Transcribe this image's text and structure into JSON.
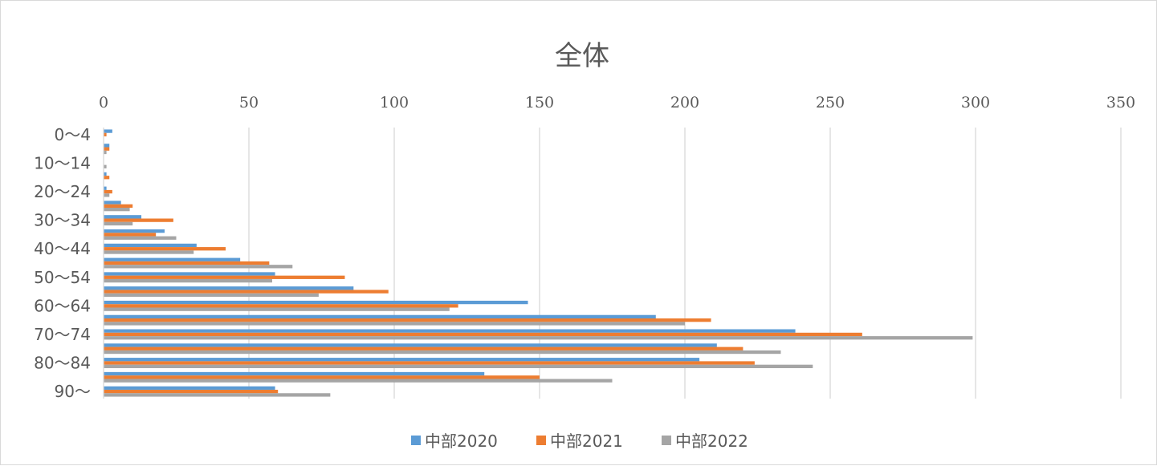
{
  "chart_data": {
    "type": "bar",
    "orientation": "horizontal",
    "title": "全体",
    "xlabel": "",
    "ylabel": "",
    "xlim": [
      0,
      350
    ],
    "x_ticks": [
      "0",
      "50",
      "100",
      "150",
      "200",
      "250",
      "300",
      "350"
    ],
    "x_axis_position": "top",
    "grid": true,
    "legend_position": "bottom",
    "categories": [
      "0～4",
      "5～9",
      "10～14",
      "15～19",
      "20～24",
      "25～29",
      "30～34",
      "35～39",
      "40～44",
      "45～49",
      "50～54",
      "55～59",
      "60～64",
      "65～69",
      "70～74",
      "75～79",
      "80～84",
      "85～89",
      "90～"
    ],
    "visible_category_labels": [
      "0～4",
      "10～14",
      "20～24",
      "30～34",
      "40～44",
      "50～54",
      "60～64",
      "70～74",
      "80～84",
      "90～"
    ],
    "series": [
      {
        "name": "中部2020",
        "color": "#5b9bd5",
        "values": [
          3,
          2,
          0,
          1,
          1,
          6,
          13,
          21,
          32,
          47,
          59,
          86,
          146,
          190,
          238,
          211,
          205,
          131,
          59
        ]
      },
      {
        "name": "中部2021",
        "color": "#ed7d31",
        "values": [
          1,
          2,
          0,
          2,
          3,
          10,
          24,
          18,
          42,
          57,
          83,
          98,
          122,
          209,
          261,
          220,
          224,
          150,
          60
        ]
      },
      {
        "name": "中部2022",
        "color": "#a5a5a5",
        "values": [
          0,
          1,
          1,
          0,
          2,
          9,
          10,
          25,
          31,
          65,
          58,
          74,
          119,
          200,
          299,
          233,
          244,
          175,
          78
        ]
      }
    ]
  }
}
